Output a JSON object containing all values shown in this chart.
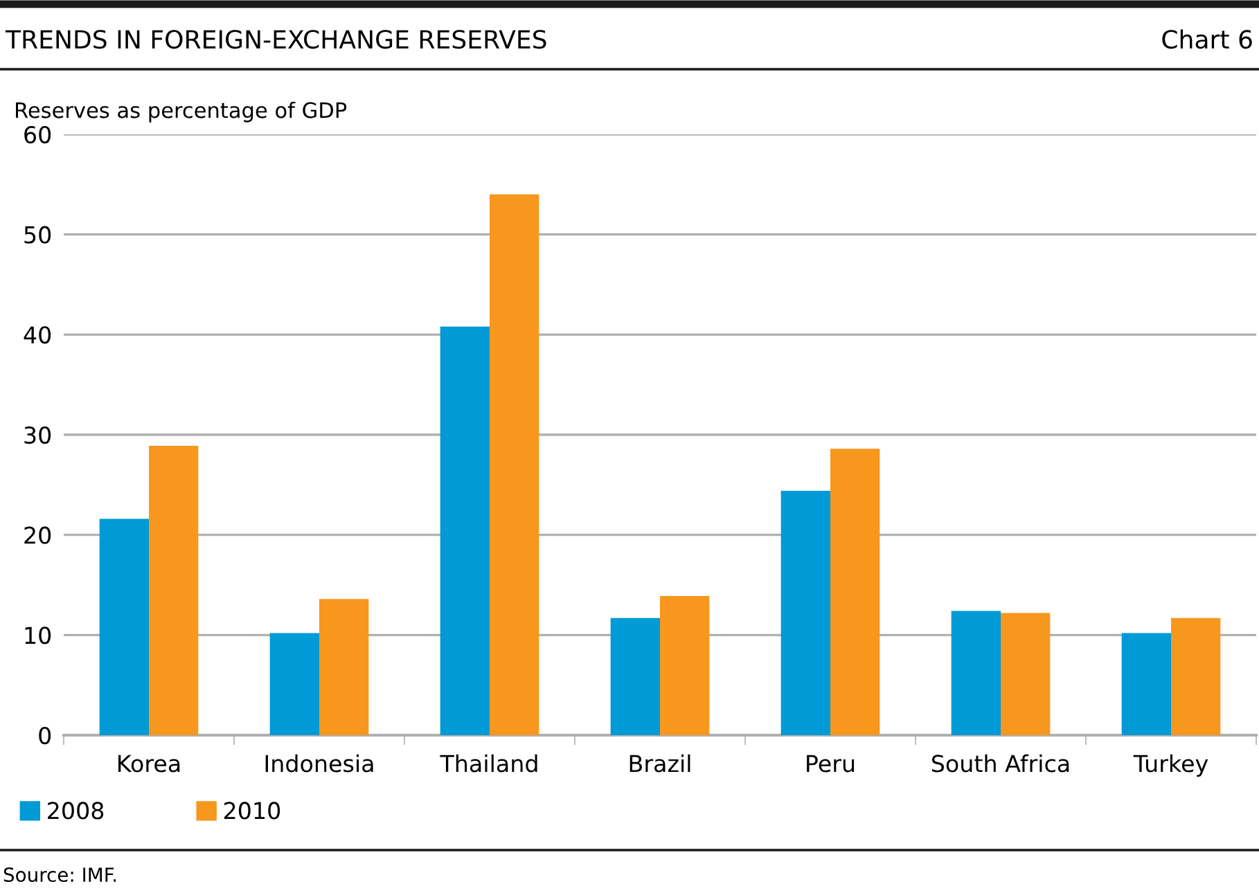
{
  "chart_data": {
    "type": "bar",
    "title": "TRENDS IN FOREIGN-EXCHANGE RESERVES",
    "subtitle": "Chart 6",
    "ylabel": "Reserves as percentage of GDP",
    "categories": [
      "Korea",
      "Indonesia",
      "Thailand",
      "Brazil",
      "Peru",
      "South Africa",
      "Turkey"
    ],
    "series": [
      {
        "name": "2008",
        "color": "#009ad6",
        "values": [
          21.6,
          10.2,
          40.8,
          11.7,
          24.4,
          12.4,
          10.2
        ]
      },
      {
        "name": "2010",
        "color": "#f7971e",
        "values": [
          28.9,
          13.6,
          54.0,
          13.9,
          28.6,
          12.2,
          11.7
        ]
      }
    ],
    "ylim": [
      0,
      60
    ],
    "yticks": [
      0,
      10,
      20,
      30,
      40,
      50,
      60
    ],
    "grid": "y",
    "legend": "bottom left",
    "annotations": [
      "Source: IMF."
    ]
  }
}
